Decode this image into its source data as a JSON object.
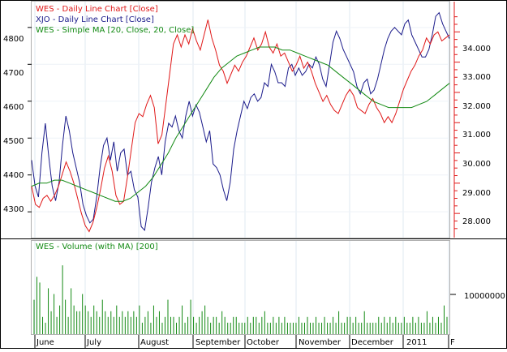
{
  "price_panel": {
    "legend": [
      {
        "text": "WES - Daily Line Chart [Close]",
        "color": "#e01818"
      },
      {
        "text": "XJO - Daily Line Chart [Close]",
        "color": "#1a1a8a"
      },
      {
        "text": "WES - Simple MA [20, Close, 20, Close]",
        "color": "#138a13"
      }
    ],
    "left_axis_ticks": [
      "4800",
      "4700",
      "4600",
      "4500",
      "4400",
      "4300"
    ],
    "right_axis_ticks": [
      "34.000",
      "33.000",
      "32.000",
      "31.000",
      "30.000",
      "29.000",
      "28.000"
    ]
  },
  "volume_panel": {
    "title": "WES - Volume (with MA) [200]",
    "axis_tick": "10000000"
  },
  "x_axis": {
    "months": [
      "June",
      "July",
      "August",
      "September",
      "October",
      "November",
      "December",
      "2011",
      "F"
    ]
  },
  "chart_data": {
    "type": "line",
    "x_axis": "date (Jun 2010 - Feb 2011)",
    "series": [
      {
        "name": "XJO - Daily Line Chart [Close]",
        "axis": "left",
        "color": "#1a1a8a",
        "values": [
          4440,
          4370,
          4340,
          4460,
          4540,
          4450,
          4370,
          4330,
          4380,
          4480,
          4560,
          4520,
          4460,
          4420,
          4380,
          4320,
          4290,
          4270,
          4280,
          4340,
          4420,
          4480,
          4500,
          4440,
          4490,
          4410,
          4460,
          4470,
          4400,
          4410,
          4360,
          4340,
          4260,
          4250,
          4310,
          4380,
          4420,
          4450,
          4400,
          4490,
          4540,
          4530,
          4560,
          4520,
          4500,
          4560,
          4600,
          4560,
          4590,
          4570,
          4530,
          4490,
          4520,
          4430,
          4420,
          4400,
          4360,
          4330,
          4380,
          4470,
          4520,
          4560,
          4600,
          4580,
          4610,
          4620,
          4600,
          4610,
          4650,
          4640,
          4700,
          4680,
          4650,
          4650,
          4640,
          4690,
          4700,
          4670,
          4690,
          4670,
          4680,
          4700,
          4690,
          4720,
          4700,
          4660,
          4640,
          4700,
          4760,
          4790,
          4770,
          4740,
          4720,
          4700,
          4680,
          4640,
          4620,
          4650,
          4660,
          4620,
          4630,
          4660,
          4700,
          4740,
          4770,
          4790,
          4800,
          4790,
          4780,
          4810,
          4820,
          4780,
          4760,
          4740,
          4720,
          4720,
          4740,
          4780,
          4830,
          4840,
          4810,
          4790,
          4770
        ]
      },
      {
        "name": "WES - Daily Line Chart [Close]",
        "axis": "right",
        "color": "#e01818",
        "values": [
          28.9,
          28.3,
          28.2,
          28.5,
          28.6,
          28.4,
          28.6,
          28.9,
          29.3,
          29.7,
          29.4,
          29.0,
          28.5,
          28.0,
          27.6,
          27.4,
          27.7,
          28.2,
          28.8,
          29.5,
          29.9,
          29.4,
          28.6,
          28.3,
          28.4,
          29.2,
          30.1,
          31.0,
          31.3,
          31.2,
          31.6,
          31.9,
          31.5,
          30.3,
          30.6,
          31.6,
          32.6,
          33.6,
          33.9,
          33.5,
          33.9,
          33.6,
          34.1,
          33.7,
          33.4,
          33.9,
          34.4,
          33.8,
          33.4,
          32.9,
          32.7,
          32.3,
          32.6,
          32.9,
          32.7,
          33.0,
          33.2,
          33.5,
          33.8,
          33.4,
          33.6,
          34.0,
          33.5,
          33.3,
          33.6,
          33.2,
          33.3,
          33.0,
          32.7,
          32.9,
          33.2,
          32.8,
          33.0,
          32.7,
          32.3,
          32.0,
          31.7,
          31.9,
          31.6,
          31.4,
          31.3,
          31.6,
          31.9,
          32.1,
          31.9,
          31.5,
          31.4,
          31.3,
          31.6,
          31.8,
          31.5,
          31.3,
          31.0,
          31.2,
          31.0,
          31.3,
          31.7,
          32.1,
          32.4,
          32.7,
          32.9,
          33.2,
          33.4,
          33.8,
          33.6,
          33.9,
          34.0,
          33.7,
          33.8,
          33.9
        ]
      },
      {
        "name": "WES - Simple MA [20, Close, 20, Close]",
        "axis": "right",
        "color": "#138a13",
        "values": [
          28.9,
          29.0,
          29.0,
          29.1,
          29.1,
          29.0,
          28.9,
          28.8,
          28.7,
          28.6,
          28.5,
          28.4,
          28.4,
          28.5,
          28.7,
          28.9,
          29.2,
          29.6,
          30.0,
          30.5,
          30.9,
          31.3,
          31.7,
          32.1,
          32.5,
          32.8,
          33.0,
          33.2,
          33.3,
          33.4,
          33.5,
          33.5,
          33.5,
          33.4,
          33.4,
          33.3,
          33.2,
          33.1,
          33.0,
          32.9,
          32.7,
          32.5,
          32.3,
          32.1,
          31.9,
          31.7,
          31.6,
          31.5,
          31.5,
          31.5,
          31.5,
          31.6,
          31.7,
          31.9,
          32.1,
          32.3
        ]
      }
    ],
    "volume": {
      "name": "WES - Volume (with MA) [200]",
      "color": "#138a13",
      "values": [
        6,
        10,
        9,
        3,
        2,
        8,
        4,
        7,
        3,
        5,
        12,
        6,
        3,
        8,
        5,
        4,
        4,
        7,
        5,
        4,
        3,
        5,
        4,
        3,
        6,
        4,
        3,
        4,
        3,
        5,
        3,
        4,
        3,
        4,
        3,
        4,
        3,
        5,
        2,
        3,
        4,
        2,
        5,
        3,
        4,
        2,
        3,
        6,
        3,
        3,
        2,
        3,
        5,
        2,
        3,
        6,
        3,
        2,
        3,
        4,
        5,
        3,
        2,
        3,
        3,
        2,
        4,
        3,
        2,
        2,
        3,
        3,
        2,
        2,
        2,
        3,
        2,
        3,
        3,
        2,
        3,
        4,
        2,
        2,
        3,
        2,
        3,
        2,
        3,
        2,
        2,
        2,
        2,
        3,
        2,
        2,
        3,
        2,
        2,
        3,
        2,
        2,
        3,
        2,
        2,
        3,
        2,
        4,
        2,
        2,
        3,
        3,
        2,
        3,
        2,
        2,
        4,
        2,
        2,
        2,
        2,
        3,
        2,
        3,
        2,
        3,
        2,
        3,
        2,
        2,
        3,
        2,
        2,
        3,
        2,
        3,
        2,
        2,
        4,
        2,
        3,
        2,
        3,
        2,
        5,
        3
      ]
    },
    "left_ylim": [
      4230,
      4870
    ],
    "right_ylim": [
      27.2,
      35.0
    ]
  }
}
